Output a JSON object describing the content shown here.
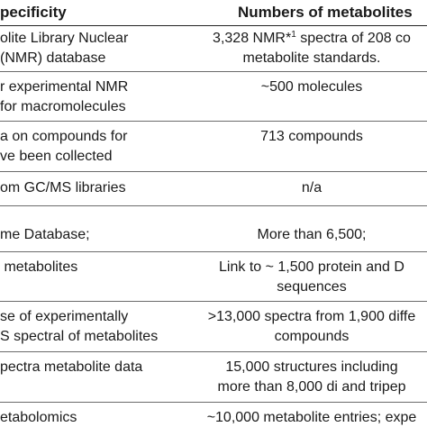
{
  "header": {
    "col_specificity": "pecificity",
    "col_numbers": "Numbers of metabolites"
  },
  "rows": [
    {
      "left": [
        "olite Library Nuclear",
        "(NMR) database"
      ],
      "right_pre": "3,328 NMR*",
      "right_sup": "1",
      "right_post": " spectra of 208 co",
      "right_line2": "metabolite standards."
    },
    {
      "left": [
        "r experimental NMR",
        "for macromolecules"
      ],
      "right": [
        "~500 molecules"
      ]
    },
    {
      "left": [
        "a on compounds for",
        "ve been collected"
      ],
      "right": [
        "713 compounds"
      ]
    },
    {
      "left": [
        "om GC/MS libraries"
      ],
      "right": [
        "n/a"
      ]
    },
    {
      "left": [
        "me Database;"
      ],
      "right": [
        "More than 6,500;"
      ]
    },
    {
      "left": [
        " metabolites"
      ],
      "right": [
        "Link to ~ 1,500 protein and D",
        "sequences"
      ]
    },
    {
      "left": [
        "se of experimentally",
        "S spectral of metabolites"
      ],
      "right": [
        ">13,000 spectra from 1,900 diffe",
        "compounds"
      ]
    },
    {
      "left": [
        "pectra metabolite data"
      ],
      "right": [
        "15,000 structures including",
        "more than 8,000 di and tripep"
      ]
    },
    {
      "left": [
        "etabolomics"
      ],
      "right": [
        "~10,000 metabolite entries; expe"
      ]
    }
  ]
}
